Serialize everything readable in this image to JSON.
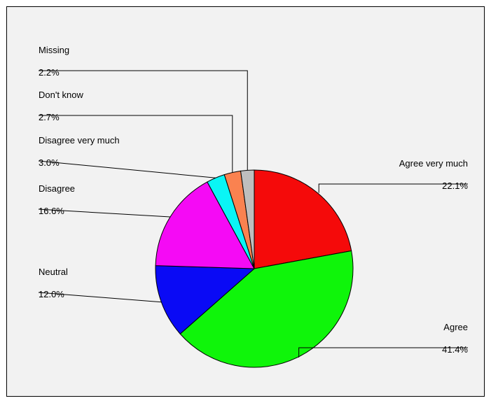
{
  "chart_data": {
    "type": "pie",
    "title": "",
    "slices": [
      {
        "label": "Agree very much",
        "value": 22.1,
        "value_label": "22.1%",
        "color": "#f50a0a"
      },
      {
        "label": "Agree",
        "value": 41.4,
        "value_label": "41.4%",
        "color": "#0ff50a"
      },
      {
        "label": "Neutral",
        "value": 12.0,
        "value_label": "12.0%",
        "color": "#0a0af5"
      },
      {
        "label": "Disagree",
        "value": 16.6,
        "value_label": "16.6%",
        "color": "#f50af5"
      },
      {
        "label": "Disagree very much",
        "value": 3.0,
        "value_label": "3.0%",
        "color": "#0af5f5"
      },
      {
        "label": "Don't know",
        "value": 2.7,
        "value_label": "2.7%",
        "color": "#fa8250"
      },
      {
        "label": "Missing",
        "value": 2.2,
        "value_label": "2.2%",
        "color": "#bebebe"
      }
    ],
    "start_angle": "12 o'clock",
    "direction": "clockwise",
    "legend": "none (leader-line labels)",
    "background_color": "#f2f2f2"
  }
}
